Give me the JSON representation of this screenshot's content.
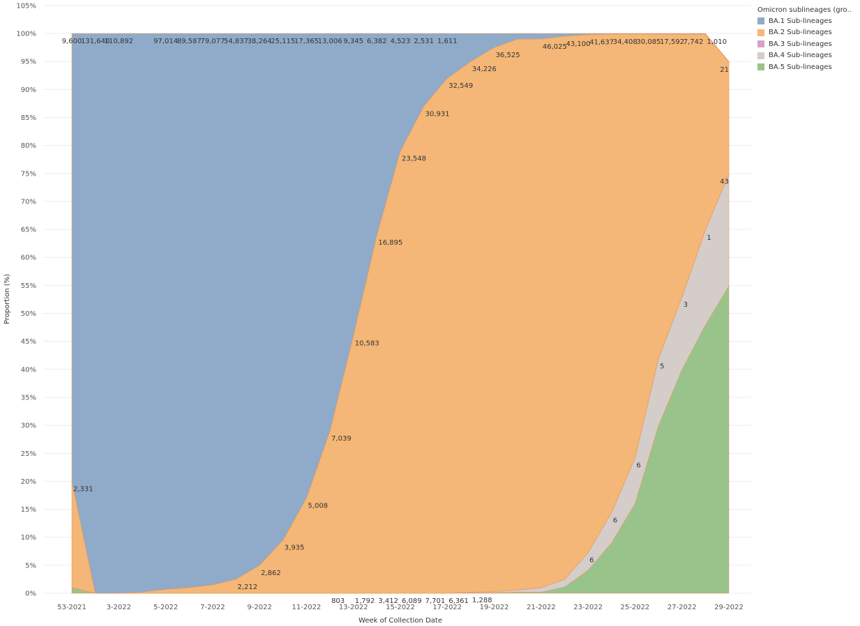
{
  "chart_data": {
    "type": "area",
    "xlabel": "Week of Collection Date",
    "ylabel": "Proportion (%)",
    "ylim": [
      0,
      105
    ],
    "y_ticks": [
      "0%",
      "5%",
      "10%",
      "15%",
      "20%",
      "25%",
      "30%",
      "35%",
      "40%",
      "45%",
      "50%",
      "55%",
      "60%",
      "65%",
      "70%",
      "75%",
      "80%",
      "85%",
      "90%",
      "95%",
      "100%",
      "105%"
    ],
    "x_tick_labels": [
      "53-2021",
      "3-2022",
      "5-2022",
      "7-2022",
      "9-2022",
      "11-2022",
      "13-2022",
      "15-2022",
      "17-2022",
      "19-2022",
      "21-2022",
      "23-2022",
      "25-2022",
      "27-2022",
      "29-2022"
    ],
    "x": [
      "53-2021",
      "1-2022",
      "2-2022",
      "3-2022",
      "4-2022",
      "5-2022",
      "6-2022",
      "7-2022",
      "8-2022",
      "9-2022",
      "10-2022",
      "11-2022",
      "12-2022",
      "13-2022",
      "14-2022",
      "15-2022",
      "16-2022",
      "17-2022",
      "18-2022",
      "19-2022",
      "20-2022",
      "21-2022",
      "22-2022",
      "23-2022",
      "24-2022",
      "25-2022",
      "26-2022",
      "27-2022",
      "28-2022"
    ],
    "grid": true,
    "legend_position": "top-right",
    "stack_order": [
      "BA.5 Sub-lineages",
      "BA.4 Sub-lineages",
      "BA.3 Sub-lineages",
      "BA.2 Sub-lineages",
      "BA.1 Sub-lineages"
    ],
    "series": [
      {
        "name": "BA.1 Sub-lineages",
        "color": "#8fabc9",
        "values": [
          80,
          100,
          100,
          99.8,
          99.3,
          99,
          98.5,
          97.5,
          95,
          90.5,
          83,
          71,
          54,
          36,
          21,
          13,
          8,
          5,
          2.5,
          1,
          1,
          0.5,
          0.2,
          0.1,
          0.1,
          0.1,
          0.1,
          0.1,
          0.1
        ],
        "labels": [
          "9,600",
          "131,640",
          "110,892",
          "",
          "97,014",
          "89,587",
          "79,077",
          "54,837",
          "38,264",
          "25,115",
          "17,365",
          "13,006",
          "9,345",
          "6,382",
          "4,523",
          "2,531",
          "1,611",
          "",
          "",
          "",
          "",
          "",
          "",
          "",
          "",
          "",
          "",
          "",
          ""
        ]
      },
      {
        "name": "BA.2 Sub-lineages",
        "color": "#f4b777",
        "values": [
          19,
          0,
          0,
          0.2,
          0.7,
          1,
          1.5,
          2.5,
          5,
          9.5,
          17,
          29,
          46,
          64,
          79,
          87,
          92,
          94.8,
          97.2,
          98.4,
          98,
          97,
          92.5,
          85.5,
          75.7,
          58,
          47,
          35,
          20
        ],
        "labels": [
          "2,331",
          "",
          "",
          "",
          "",
          "",
          "",
          "2,212",
          "2,862",
          "3,935",
          "5,008",
          "7,039",
          "10,583",
          "16,895",
          "23,548",
          "30,931",
          "32,549",
          "34,226",
          "36,525",
          "",
          "46,025",
          "43,100",
          "41,637",
          "34,408",
          "30,085",
          "17,592",
          "7,742",
          "1,010",
          "21"
        ]
      },
      {
        "name": "BA.3 Sub-lineages",
        "color": "#d7a3c4",
        "values": [
          0,
          0,
          0,
          0,
          0,
          0,
          0,
          0,
          0,
          0,
          0,
          0,
          0,
          0,
          0,
          0,
          0,
          0,
          0,
          0,
          0,
          0,
          0,
          0,
          0,
          0,
          0,
          0,
          0
        ],
        "labels": [
          "",
          "",
          "",
          "",
          "",
          "",
          "",
          "",
          "",
          "",
          "",
          "",
          "",
          "",
          "",
          "",
          "",
          "",
          "",
          "",
          "",
          "",
          "",
          "",
          "",
          "",
          "",
          "",
          ""
        ]
      },
      {
        "name": "BA.4 Sub-lineages",
        "color": "#d4cdca",
        "values": [
          0,
          0,
          0,
          0,
          0,
          0,
          0,
          0,
          0,
          0,
          0,
          0,
          0,
          0,
          0,
          0,
          0,
          0.1,
          0.2,
          0.4,
          0.8,
          1.4,
          3.2,
          5.4,
          8.2,
          12,
          13,
          17,
          20
        ],
        "labels": [
          "",
          "",
          "",
          "",
          "",
          "",
          "",
          "",
          "",
          "",
          "",
          "",
          "",
          "",
          "",
          "",
          "",
          "",
          "",
          "",
          "",
          "",
          "6",
          "6",
          "6",
          "5",
          "3",
          "1",
          "43"
        ]
      },
      {
        "name": "BA.5 Sub-lineages",
        "color": "#98c48c",
        "values": [
          1,
          0,
          0,
          0,
          0,
          0,
          0,
          0,
          0,
          0,
          0,
          0,
          0,
          0,
          0,
          0,
          0,
          0.1,
          0.1,
          0.2,
          0.2,
          1.1,
          4.1,
          9,
          16,
          29.9,
          39.9,
          47.9,
          54.9
        ],
        "labels": [
          "",
          "",
          "",
          "",
          "",
          "",
          "",
          "",
          "",
          "",
          "",
          "803",
          "1,792",
          "3,412",
          "6,089",
          "7,701",
          "6,361",
          "1,288",
          "",
          "",
          "",
          "",
          "",
          "",
          "",
          "",
          "",
          "",
          ""
        ]
      }
    ]
  }
}
